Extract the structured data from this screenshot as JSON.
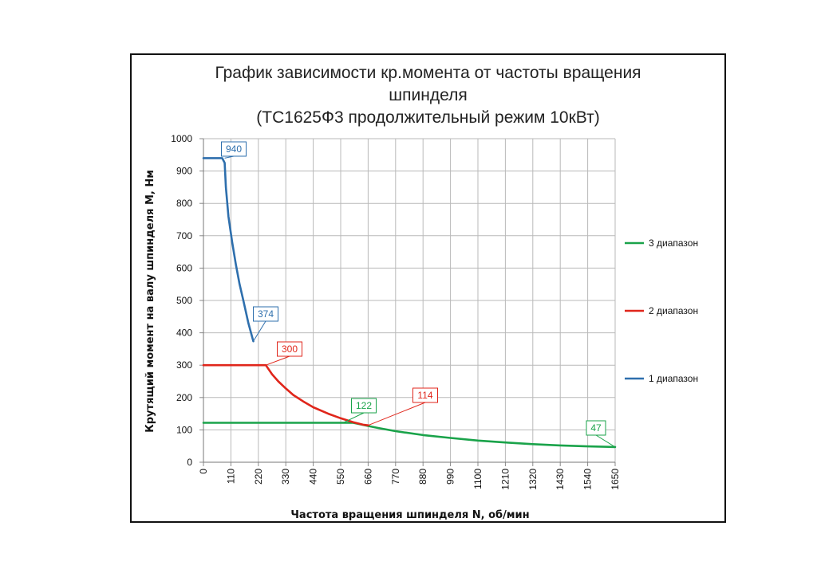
{
  "chart_data": {
    "type": "line",
    "title": [
      "График зависимости кр.момента от частоты вращения",
      "шпинделя",
      "(ТС1625Ф3 продолжительный режим 10кВт)"
    ],
    "xlabel": "Частота вращения шпинделя N, об/мин",
    "ylabel": "Крутящий момент на валу шпинделя М, Нм",
    "xlim": [
      0,
      1650
    ],
    "ylim": [
      0,
      1000
    ],
    "x_ticks": [
      "0",
      "110",
      "220",
      "330",
      "440",
      "550",
      "660",
      "770",
      "880",
      "990",
      "1100",
      "1210",
      "1320",
      "1430",
      "1540",
      "1650"
    ],
    "y_ticks": [
      "0",
      "100",
      "200",
      "300",
      "400",
      "500",
      "600",
      "700",
      "800",
      "900",
      "1000"
    ],
    "grid": true,
    "legend_position": "right",
    "series": [
      {
        "name": "3 диапазон",
        "color": "#1aa34a",
        "points": [
          [
            0,
            122
          ],
          [
            560,
            122
          ],
          [
            600,
            122
          ],
          [
            660,
            112
          ],
          [
            700,
            106
          ],
          [
            770,
            96
          ],
          [
            880,
            84
          ],
          [
            990,
            75
          ],
          [
            1100,
            67
          ],
          [
            1210,
            61
          ],
          [
            1320,
            56
          ],
          [
            1430,
            52
          ],
          [
            1540,
            49
          ],
          [
            1650,
            47
          ]
        ]
      },
      {
        "name": "2 диапазон",
        "color": "#e0261b",
        "points": [
          [
            0,
            300
          ],
          [
            250,
            300
          ],
          [
            275,
            272
          ],
          [
            300,
            250
          ],
          [
            330,
            228
          ],
          [
            360,
            208
          ],
          [
            400,
            188
          ],
          [
            440,
            170
          ],
          [
            500,
            150
          ],
          [
            550,
            136
          ],
          [
            600,
            124
          ],
          [
            640,
            116
          ],
          [
            660,
            114
          ]
        ]
      },
      {
        "name": "1 диапазон",
        "color": "#2e6fad",
        "points": [
          [
            0,
            940
          ],
          [
            75,
            940
          ],
          [
            85,
            925
          ],
          [
            90,
            850
          ],
          [
            100,
            760
          ],
          [
            115,
            680
          ],
          [
            130,
            610
          ],
          [
            145,
            550
          ],
          [
            160,
            500
          ],
          [
            180,
            430
          ],
          [
            200,
            374
          ]
        ]
      }
    ],
    "data_labels": [
      {
        "text": "940",
        "x": 85,
        "y": 940,
        "series": "1 диапазон"
      },
      {
        "text": "374",
        "x": 200,
        "y": 374,
        "series": "1 диапазон"
      },
      {
        "text": "300",
        "x": 250,
        "y": 300,
        "series": "2 диапазон"
      },
      {
        "text": "114",
        "x": 660,
        "y": 114,
        "series": "2 диапазон"
      },
      {
        "text": "122",
        "x": 560,
        "y": 122,
        "series": "3 диапазон"
      },
      {
        "text": "47",
        "x": 1650,
        "y": 47,
        "series": "3 диапазон"
      }
    ]
  }
}
